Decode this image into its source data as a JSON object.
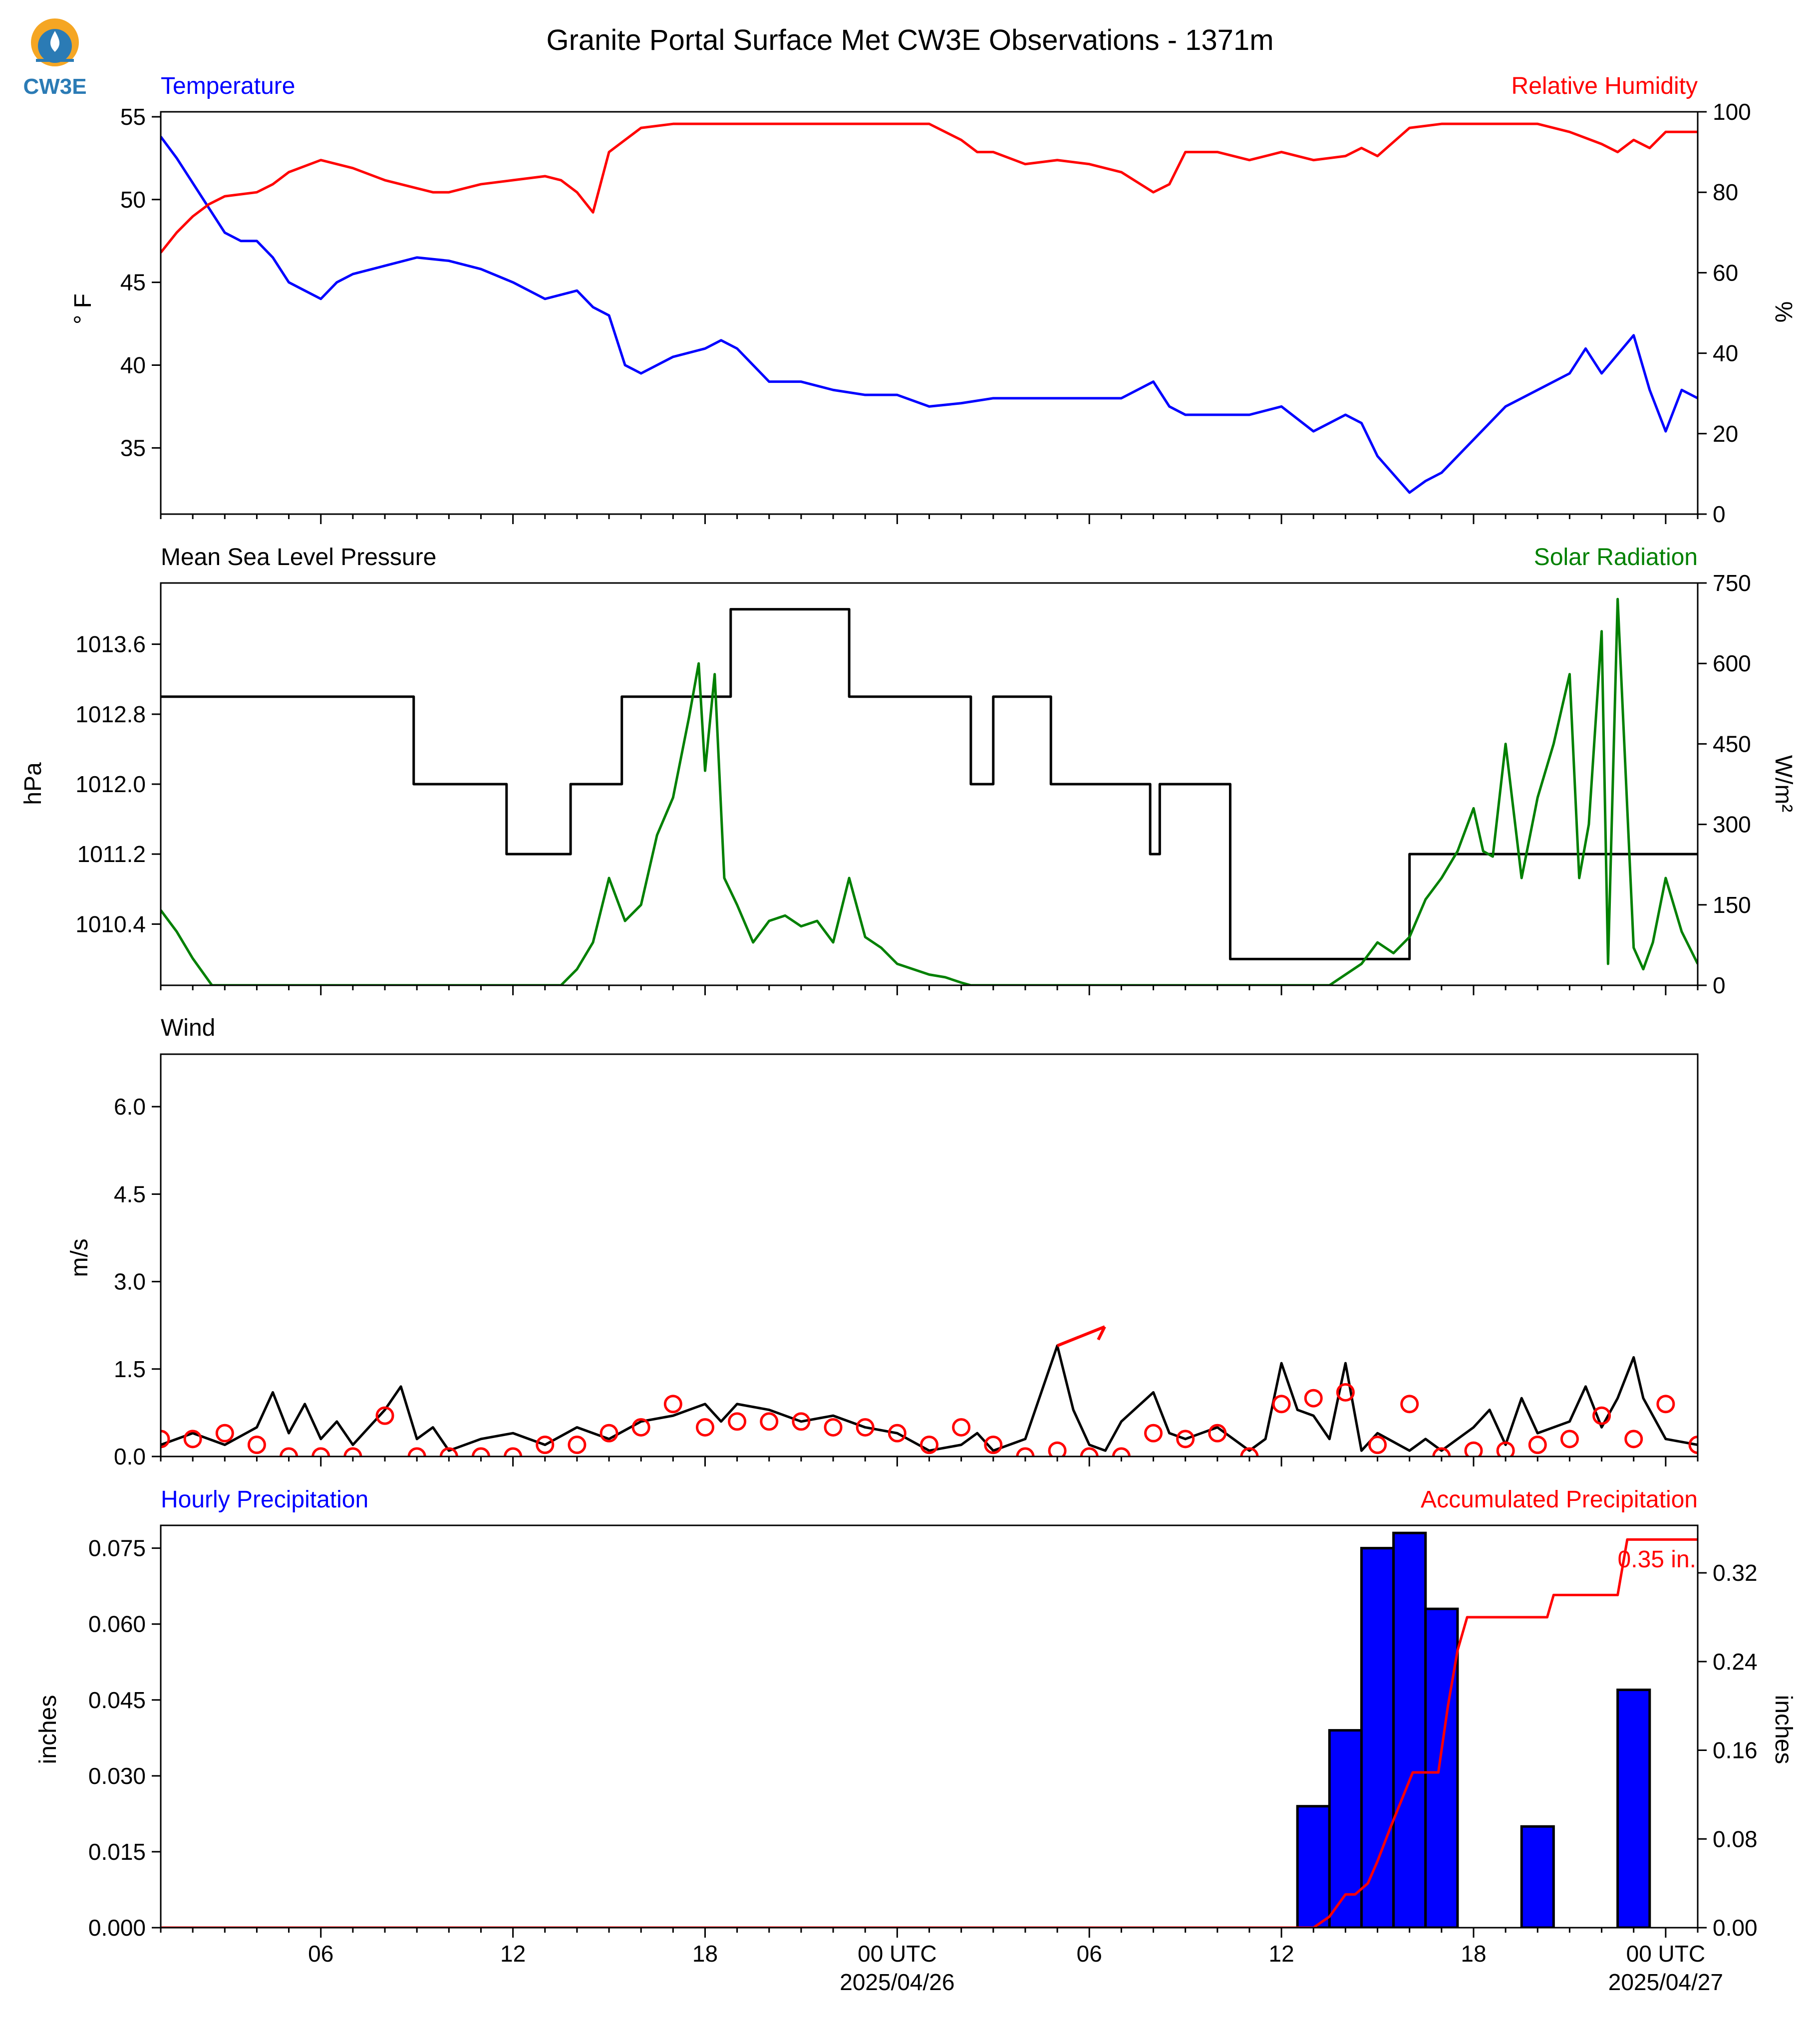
{
  "figure": {
    "title": "Granite Portal Surface Met CW3E Observations - 1371m",
    "logo_text": "CW3E"
  },
  "colors": {
    "temperature": "#0000ff",
    "humidity": "#ff0000",
    "pressure": "#000000",
    "solar": "#008000",
    "wind": "#000000",
    "gust": "#ff0000",
    "precip_bars": "#0000ff",
    "precip_accum": "#ff0000",
    "logo_orange": "#f5a623",
    "logo_blue": "#2b7bb5"
  },
  "x_axis": {
    "range_hours": [
      0,
      48
    ],
    "tick_hours": [
      5,
      11,
      17,
      23,
      29,
      35,
      41,
      47
    ],
    "tick_labels": [
      "06",
      "12",
      "18",
      "00 UTC",
      "06",
      "12",
      "18",
      "00 UTC"
    ],
    "date_labels": [
      {
        "hour": 23,
        "text": "2025/04/26"
      },
      {
        "hour": 47,
        "text": "2025/04/27"
      }
    ]
  },
  "chart_data": [
    {
      "type": "line",
      "panel": "temperature_humidity",
      "left_title": "Temperature",
      "right_title": "Relative Humidity",
      "ylabel": "° F",
      "y2label": "%",
      "ylim": [
        31,
        55.3
      ],
      "y2lim": [
        0,
        100
      ],
      "yticks": [
        35,
        40,
        45,
        50,
        55
      ],
      "y2ticks": [
        0,
        20,
        40,
        60,
        80,
        100
      ],
      "series": [
        {
          "name": "Temperature",
          "axis": "left",
          "x": [
            0,
            0.5,
            1,
            1.5,
            2,
            2.5,
            3,
            3.5,
            4,
            4.5,
            5,
            5.5,
            6,
            7,
            8,
            9,
            10,
            11,
            12,
            13,
            13.5,
            14,
            14.5,
            15,
            16,
            17,
            17.5,
            18,
            18.5,
            19,
            20,
            21,
            22,
            23,
            24,
            25,
            26,
            27,
            28,
            29,
            30,
            31,
            31.5,
            32,
            33,
            34,
            35,
            36,
            37,
            37.5,
            38,
            39,
            39.5,
            40,
            41,
            42,
            43,
            44,
            44.5,
            45,
            46,
            46.5,
            47,
            47.5,
            48
          ],
          "y": [
            53.8,
            52.5,
            51.0,
            49.5,
            48.0,
            47.5,
            47.5,
            46.5,
            45.0,
            44.5,
            44.0,
            45.0,
            45.5,
            46.0,
            46.5,
            46.3,
            45.8,
            45.0,
            44.0,
            44.5,
            43.5,
            43.0,
            40.0,
            39.5,
            40.5,
            41.0,
            41.5,
            41.0,
            40.0,
            39.0,
            39.0,
            38.5,
            38.2,
            38.2,
            37.5,
            37.7,
            38.0,
            38.0,
            38.0,
            38.0,
            38.0,
            39.0,
            37.5,
            37.0,
            37.0,
            37.0,
            37.5,
            36.0,
            37.0,
            36.5,
            34.5,
            32.3,
            33.0,
            33.5,
            35.5,
            37.5,
            38.5,
            39.5,
            41.0,
            39.5,
            41.8,
            38.5,
            36.0,
            38.5,
            38.0
          ]
        },
        {
          "name": "Relative Humidity",
          "axis": "right",
          "x": [
            0,
            0.5,
            1,
            1.5,
            2,
            3,
            3.5,
            4,
            5,
            6,
            7,
            8,
            8.5,
            9,
            10,
            11,
            12,
            12.5,
            13,
            13.5,
            14,
            14.5,
            15,
            16,
            17,
            18,
            19,
            20,
            21,
            22,
            23,
            24,
            25,
            25.5,
            26,
            27,
            28,
            29,
            30,
            31,
            31.5,
            32,
            33,
            34,
            35,
            36,
            37,
            37.5,
            38,
            39,
            40,
            41,
            42,
            43,
            44,
            45,
            45.5,
            46,
            46.5,
            47,
            48
          ],
          "y": [
            65,
            70,
            74,
            77,
            79,
            80,
            82,
            85,
            88,
            86,
            83,
            81,
            80,
            80,
            82,
            83,
            84,
            83,
            80,
            75,
            90,
            93,
            96,
            97,
            97,
            97,
            97,
            97,
            97,
            97,
            97,
            97,
            93,
            90,
            90,
            87,
            88,
            87,
            85,
            80,
            82,
            90,
            90,
            88,
            90,
            88,
            89,
            91,
            89,
            96,
            97,
            97,
            97,
            97,
            95,
            92,
            90,
            93,
            91,
            95,
            95
          ]
        }
      ]
    },
    {
      "type": "line",
      "panel": "pressure_solar",
      "left_title": "Mean Sea Level Pressure",
      "right_title": "Solar Radiation",
      "ylabel": "hPa",
      "y2label": "W/m²",
      "ylim": [
        1009.7,
        1014.3
      ],
      "y2lim": [
        0,
        750
      ],
      "yticks": [
        1010.4,
        1011.2,
        1012.0,
        1012.8,
        1013.6
      ],
      "y2ticks": [
        0,
        150,
        300,
        450,
        600,
        750
      ],
      "series": [
        {
          "name": "Mean Sea Level Pressure",
          "axis": "left",
          "step": true,
          "x": [
            0,
            7.9,
            10.8,
            12.8,
            14.4,
            17.8,
            21.5,
            25.3,
            26.0,
            26.6,
            27.8,
            30.9,
            31.2,
            33.4,
            39.0,
            39.2,
            48
          ],
          "y": [
            1013.0,
            1012.0,
            1011.2,
            1012.0,
            1013.0,
            1014.0,
            1013.0,
            1012.0,
            1013.0,
            1013.0,
            1012.0,
            1011.2,
            1012.0,
            1010.0,
            1011.2,
            1011.2,
            1011.2
          ]
        },
        {
          "name": "Solar Radiation",
          "axis": "right",
          "x": [
            0,
            0.5,
            1,
            1.6,
            12.5,
            13.0,
            13.5,
            14.0,
            14.5,
            15.0,
            15.5,
            16.0,
            16.5,
            16.8,
            17.0,
            17.3,
            17.6,
            18.0,
            18.5,
            19.0,
            19.5,
            20.0,
            20.5,
            21.0,
            21.5,
            22.0,
            22.5,
            23.0,
            23.5,
            24.0,
            24.5,
            25.0,
            25.3,
            36.5,
            37.0,
            37.5,
            38.0,
            38.5,
            39.0,
            39.5,
            40.0,
            40.5,
            41.0,
            41.3,
            41.6,
            42.0,
            42.5,
            43.0,
            43.5,
            44.0,
            44.3,
            44.6,
            45.0,
            45.2,
            45.5,
            46.0,
            46.3,
            46.6,
            47.0,
            47.5,
            48
          ],
          "y": [
            140,
            100,
            50,
            0,
            0,
            30,
            80,
            200,
            120,
            150,
            280,
            350,
            500,
            600,
            400,
            580,
            200,
            150,
            80,
            120,
            130,
            110,
            120,
            80,
            200,
            90,
            70,
            40,
            30,
            20,
            15,
            5,
            0,
            0,
            20,
            40,
            80,
            60,
            90,
            160,
            200,
            250,
            330,
            250,
            240,
            450,
            200,
            350,
            450,
            580,
            200,
            300,
            660,
            40,
            720,
            70,
            30,
            80,
            200,
            100,
            40
          ]
        }
      ]
    },
    {
      "type": "line",
      "panel": "wind",
      "left_title": "Wind",
      "ylabel": "m/s",
      "ylim": [
        0,
        6.9
      ],
      "yticks": [
        0.0,
        1.5,
        3.0,
        4.5,
        6.0
      ],
      "series": [
        {
          "name": "Wind",
          "x": [
            0,
            1,
            2,
            3,
            3.5,
            4,
            4.5,
            5,
            5.5,
            6,
            7,
            7.5,
            8,
            8.5,
            9,
            10,
            11,
            12,
            13,
            14,
            15,
            16,
            17,
            17.5,
            18,
            19,
            20,
            21,
            22,
            23,
            24,
            25,
            25.5,
            26,
            27,
            28,
            28.5,
            29,
            29.5,
            30,
            31,
            31.5,
            32,
            33,
            34,
            34.5,
            35,
            35.5,
            36,
            36.5,
            37,
            37.5,
            38,
            39,
            39.5,
            40,
            41,
            41.5,
            42,
            42.5,
            43,
            44,
            44.5,
            45,
            45.5,
            46,
            46.3,
            46.7,
            47,
            48
          ],
          "y": [
            0.2,
            0.4,
            0.2,
            0.5,
            1.1,
            0.4,
            0.9,
            0.3,
            0.6,
            0.2,
            0.8,
            1.2,
            0.3,
            0.5,
            0.1,
            0.3,
            0.4,
            0.2,
            0.5,
            0.3,
            0.6,
            0.7,
            0.9,
            0.6,
            0.9,
            0.8,
            0.6,
            0.7,
            0.5,
            0.4,
            0.1,
            0.2,
            0.4,
            0.1,
            0.3,
            1.9,
            0.8,
            0.2,
            0.1,
            0.6,
            1.1,
            0.4,
            0.3,
            0.5,
            0.1,
            0.3,
            1.6,
            0.8,
            0.7,
            0.3,
            1.6,
            0.1,
            0.4,
            0.1,
            0.3,
            0.1,
            0.5,
            0.8,
            0.2,
            1.0,
            0.4,
            0.6,
            1.2,
            0.5,
            1.0,
            1.7,
            1.0,
            0.6,
            0.3,
            0.2
          ]
        },
        {
          "name": "Gust",
          "x": [
            0,
            1,
            2,
            3,
            4,
            5,
            6,
            7,
            8,
            9,
            10,
            11,
            12,
            13,
            14,
            15,
            16,
            17,
            18,
            19,
            20,
            21,
            22,
            23,
            24,
            25,
            26,
            27,
            28,
            29,
            30,
            31,
            32,
            33,
            34,
            35,
            36,
            37,
            38,
            39,
            40,
            41,
            42,
            43,
            44,
            45,
            46,
            47,
            48
          ],
          "y": [
            0.3,
            0.3,
            0.4,
            0.2,
            0.0,
            0.0,
            0.0,
            0.7,
            0.0,
            0.0,
            0.0,
            0.0,
            0.2,
            0.2,
            0.4,
            0.5,
            0.9,
            0.5,
            0.6,
            0.6,
            0.6,
            0.5,
            0.5,
            0.4,
            0.2,
            0.5,
            0.2,
            0.0,
            0.1,
            0.0,
            0.0,
            0.4,
            0.3,
            0.4,
            0.0,
            0.9,
            1.0,
            1.1,
            0.2,
            0.9,
            0.0,
            0.1,
            0.1,
            0.2,
            0.3,
            0.7,
            0.3,
            0.9,
            0.2
          ]
        }
      ],
      "wind_barb": {
        "hour": 28,
        "speed": 1.9
      }
    },
    {
      "type": "bar",
      "panel": "precipitation",
      "left_title": "Hourly Precipitation",
      "right_title": "Accumulated Precipitation",
      "ylabel": "inches",
      "y2label": "inches",
      "ylim": [
        0,
        0.0795
      ],
      "y2lim": [
        0,
        0.3628
      ],
      "yticks": [
        0.0,
        0.015,
        0.03,
        0.045,
        0.06,
        0.075
      ],
      "y2ticks": [
        0.0,
        0.08,
        0.16,
        0.24,
        0.32
      ],
      "total_label": "0.35 in.",
      "series": [
        {
          "name": "Hourly Precipitation",
          "axis": "left",
          "x": [
            36,
            37,
            38,
            39,
            40,
            41,
            43,
            46
          ],
          "y": [
            0.024,
            0.039,
            0.075,
            0.078,
            0.063,
            0.0,
            0.02,
            0.047
          ]
        },
        {
          "name": "Accumulated Precipitation",
          "axis": "right",
          "x": [
            0,
            36,
            36.5,
            37,
            37.3,
            37.7,
            38,
            38.4,
            39.1,
            39.6,
            39.9,
            40.2,
            40.5,
            40.8,
            41,
            42.5,
            43.3,
            43.5,
            45.5,
            45.8,
            48
          ],
          "y": [
            0,
            0,
            0.01,
            0.03,
            0.03,
            0.04,
            0.06,
            0.09,
            0.14,
            0.14,
            0.14,
            0.2,
            0.25,
            0.28,
            0.28,
            0.28,
            0.28,
            0.3,
            0.3,
            0.35,
            0.35
          ]
        }
      ]
    }
  ]
}
